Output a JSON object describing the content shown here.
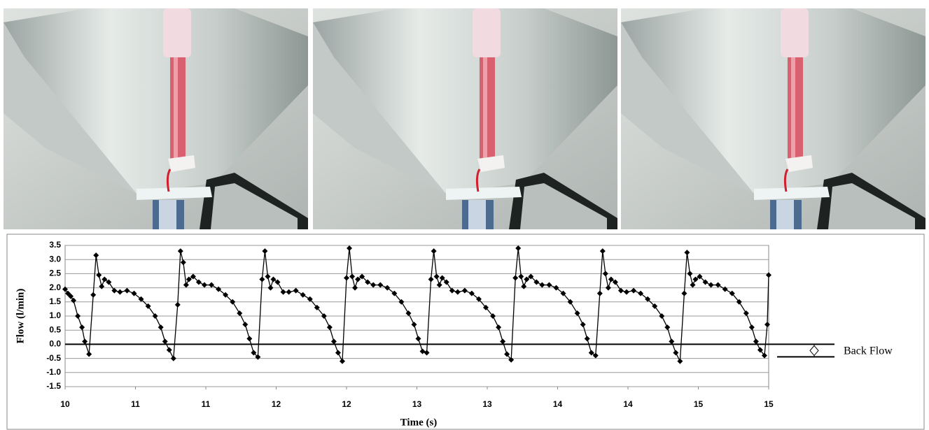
{
  "chart_data": {
    "type": "line",
    "x_label": "Time (s)",
    "y_label": "Flow (l/min)",
    "annotation": "Back Flow",
    "color": "#000000",
    "x": [
      10,
      10.02,
      10.04,
      10.06,
      10.09,
      10.12,
      10.14,
      10.17,
      10.2,
      10.22,
      10.24,
      10.26,
      10.28,
      10.31,
      10.35,
      10.39,
      10.44,
      10.49,
      10.54,
      10.59,
      10.64,
      10.68,
      10.71,
      10.74,
      10.77,
      10.8,
      10.82,
      10.84,
      10.86,
      10.88,
      10.91,
      10.95,
      10.99,
      11.04,
      11.09,
      11.14,
      11.19,
      11.24,
      11.28,
      11.31,
      11.34,
      11.37,
      11.4,
      11.42,
      11.44,
      11.46,
      11.48,
      11.51,
      11.55,
      11.59,
      11.64,
      11.69,
      11.74,
      11.79,
      11.84,
      11.88,
      11.91,
      11.94,
      11.97,
      12,
      12.02,
      12.04,
      12.06,
      12.08,
      12.11,
      12.15,
      12.19,
      12.24,
      12.29,
      12.34,
      12.39,
      12.44,
      12.48,
      12.51,
      12.54,
      12.57,
      12.6,
      12.62,
      12.64,
      12.66,
      12.68,
      12.71,
      12.75,
      12.79,
      12.84,
      12.89,
      12.94,
      12.99,
      13.04,
      13.08,
      13.11,
      13.14,
      13.17,
      13.2,
      13.22,
      13.24,
      13.26,
      13.28,
      13.31,
      13.35,
      13.39,
      13.44,
      13.49,
      13.54,
      13.59,
      13.64,
      13.68,
      13.71,
      13.74,
      13.77,
      13.8,
      13.82,
      13.84,
      13.86,
      13.88,
      13.91,
      13.95,
      13.99,
      14.04,
      14.09,
      14.14,
      14.19,
      14.24,
      14.28,
      14.31,
      14.34,
      14.37,
      14.4,
      14.42,
      14.44,
      14.46,
      14.48,
      14.51,
      14.55,
      14.59,
      14.64,
      14.69,
      14.74,
      14.79,
      14.84,
      14.88,
      14.91,
      14.94,
      14.97,
      14.99,
      15
    ],
    "values": [
      1.95,
      1.8,
      1.7,
      1.55,
      1.0,
      0.6,
      0.1,
      -0.35,
      1.75,
      3.15,
      2.45,
      2.05,
      2.3,
      2.2,
      1.9,
      1.85,
      1.9,
      1.8,
      1.6,
      1.35,
      1.0,
      0.6,
      0.1,
      -0.2,
      -0.5,
      1.4,
      3.3,
      2.9,
      2.1,
      2.3,
      2.4,
      2.2,
      2.1,
      2.1,
      1.95,
      1.75,
      1.5,
      1.1,
      0.7,
      0.2,
      -0.3,
      -0.45,
      2.3,
      3.3,
      2.4,
      2.0,
      2.3,
      2.2,
      1.85,
      1.85,
      1.9,
      1.75,
      1.6,
      1.3,
      1.0,
      0.6,
      0.1,
      -0.3,
      -0.6,
      2.35,
      3.4,
      2.4,
      2.0,
      2.3,
      2.4,
      2.2,
      2.1,
      2.1,
      2.0,
      1.8,
      1.5,
      1.1,
      0.7,
      0.2,
      -0.25,
      -0.3,
      2.3,
      3.3,
      2.4,
      2.1,
      2.35,
      2.2,
      1.9,
      1.85,
      1.9,
      1.8,
      1.6,
      1.3,
      1.0,
      0.6,
      0.1,
      -0.35,
      -0.55,
      2.35,
      3.4,
      2.4,
      2.05,
      2.3,
      2.4,
      2.2,
      2.1,
      2.1,
      2.0,
      1.8,
      1.5,
      1.1,
      0.7,
      0.2,
      -0.3,
      -0.4,
      1.8,
      3.3,
      2.5,
      2.0,
      2.3,
      2.2,
      1.9,
      1.85,
      1.9,
      1.8,
      1.6,
      1.35,
      1.0,
      0.6,
      0.1,
      -0.3,
      -0.6,
      1.8,
      3.25,
      2.5,
      2.1,
      2.3,
      2.4,
      2.2,
      2.1,
      2.1,
      1.95,
      1.8,
      1.5,
      1.1,
      0.6,
      0.1,
      -0.2,
      -0.4,
      0.7,
      2.45
    ],
    "xlim": [
      10,
      15
    ],
    "ylim": [
      -1.5,
      3.5
    ],
    "xticks": [
      {
        "value": 10,
        "label": "10"
      },
      {
        "value": 10.5,
        "label": "11"
      },
      {
        "value": 11,
        "label": "11"
      },
      {
        "value": 11.5,
        "label": "12"
      },
      {
        "value": 12,
        "label": "12"
      },
      {
        "value": 12.5,
        "label": "13"
      },
      {
        "value": 13,
        "label": "13"
      },
      {
        "value": 13.5,
        "label": "14"
      },
      {
        "value": 14,
        "label": "14"
      },
      {
        "value": 14.5,
        "label": "15"
      },
      {
        "value": 15,
        "label": "15"
      }
    ],
    "yticks": [
      3.5,
      {
        "value": 3,
        "label": "3.0"
      },
      2.5,
      {
        "value": 2,
        "label": "2.0"
      },
      1.5,
      {
        "value": 1,
        "label": "1.0"
      },
      0.5,
      {
        "value": 0,
        "label": "0.0"
      },
      -0.5,
      {
        "value": -1,
        "label": "-1.0"
      },
      -1.5
    ],
    "grid": true
  }
}
